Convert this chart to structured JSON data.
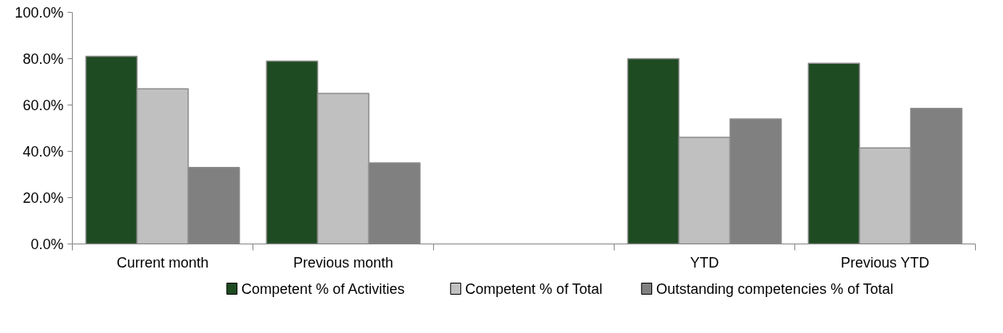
{
  "chart_data": {
    "type": "bar",
    "categories": [
      "Current month",
      "Previous month",
      null,
      "YTD",
      "Previous YTD"
    ],
    "series": [
      {
        "name": "Competent % of Activities",
        "color": "#1e4b22",
        "values": [
          81,
          79,
          null,
          80,
          78
        ]
      },
      {
        "name": "Competent % of Total",
        "color": "#c0c0c0",
        "values": [
          67,
          65,
          null,
          46,
          41.5
        ]
      },
      {
        "name": "Outstanding competencies % of Total",
        "color": "#808080",
        "values": [
          33,
          35,
          null,
          54,
          58.5
        ]
      }
    ],
    "ylim": [
      0,
      100
    ],
    "yticks": [
      {
        "value": 0,
        "label": "0.0%"
      },
      {
        "value": 20,
        "label": "20.0%"
      },
      {
        "value": 40,
        "label": "40.0%"
      },
      {
        "value": 60,
        "label": "60.0%"
      },
      {
        "value": 80,
        "label": "80.0%"
      },
      {
        "value": 100,
        "label": "100.0%"
      }
    ],
    "grid": false,
    "legend": "bottom"
  }
}
